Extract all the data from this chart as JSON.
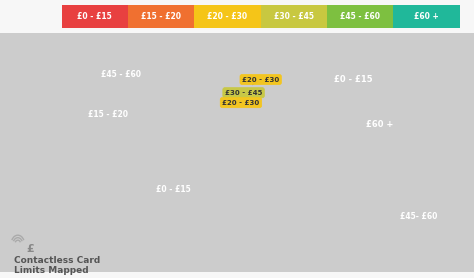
{
  "background_color": "#f7f7f7",
  "legend_items": [
    {
      "label": "£0 - £15",
      "color": "#e84040"
    },
    {
      "label": "£15 - £20",
      "color": "#f07030"
    },
    {
      "label": "£20 - £30",
      "color": "#f5c518"
    },
    {
      "label": "£30 - £45",
      "color": "#c8c840"
    },
    {
      "label": "£45 - £60",
      "color": "#7dc040"
    },
    {
      "label": "£60 +",
      "color": "#20b89a"
    }
  ],
  "color_map": {
    "RUS": "#e84040",
    "CHN": "#e84040",
    "BRA": "#e84040",
    "IND": "#e84040",
    "TUR": "#e84040",
    "IRN": "#e84040",
    "SAU": "#e84040",
    "EGY": "#e84040",
    "PAK": "#e84040",
    "NGA": "#e84040",
    "ZAF": "#e84040",
    "ARG": "#e84040",
    "MEX": "#e84040",
    "IDN": "#e84040",
    "BGD": "#e84040",
    "DZA": "#e84040",
    "LBY": "#e84040",
    "SDN": "#e84040",
    "ETH": "#e84040",
    "COD": "#e84040",
    "TZA": "#e84040",
    "KEN": "#e84040",
    "MOZ": "#e84040",
    "AGO": "#e84040",
    "VEN": "#e84040",
    "COL": "#e84040",
    "PER": "#e84040",
    "CHL": "#e84040",
    "BOL": "#e84040",
    "PRY": "#e84040",
    "URY": "#e84040",
    "ECU": "#e84040",
    "GUY": "#e84040",
    "MMR": "#e84040",
    "VNM": "#e84040",
    "PHL": "#e84040",
    "KAZ": "#e84040",
    "UZB": "#e84040",
    "AFG": "#e84040",
    "IRQ": "#e84040",
    "SYR": "#e84040",
    "YEM": "#e84040",
    "OMN": "#e84040",
    "ARE": "#e84040",
    "QAT": "#e84040",
    "KWT": "#e84040",
    "MAR": "#e84040",
    "TUN": "#e84040",
    "SOM": "#e84040",
    "CMR": "#e84040",
    "ZMB": "#e84040",
    "ZWE": "#e84040",
    "MWI": "#e84040",
    "MDG": "#e84040",
    "USA": "#f07030",
    "DEU": "#f5c518",
    "FRA": "#f5c518",
    "ITA": "#f5c518",
    "ESP": "#f5c518",
    "POL": "#f5c518",
    "NLD": "#f5c518",
    "BEL": "#f5c518",
    "CHE": "#f5c518",
    "AUT": "#f5c518",
    "SWE": "#f5c518",
    "DNK": "#f5c518",
    "NOR": "#f5c518",
    "FIN": "#f5c518",
    "PRT": "#f5c518",
    "GRC": "#f5c518",
    "CZE": "#f5c518",
    "HUN": "#f5c518",
    "ROU": "#f5c518",
    "BGR": "#f5c518",
    "SRB": "#f5c518",
    "HRV": "#f5c518",
    "UKR": "#f5c518",
    "BLR": "#f5c518",
    "SVK": "#f5c518",
    "LTU": "#f5c518",
    "LVA": "#f5c518",
    "EST": "#f5c518",
    "MDA": "#f5c518",
    "SVN": "#f5c518",
    "MKD": "#f5c518",
    "ALB": "#f5c518",
    "BIH": "#f5c518",
    "MNE": "#f5c518",
    "GBR": "#c8c840",
    "IRL": "#c8c840",
    "CAN": "#7dc040",
    "AUS": "#7dc040",
    "JPN": "#20b89a",
    "KOR": "#20b89a",
    "NZL": "#20b89a",
    "MYS": "#20b89a",
    "THA": "#20b89a",
    "SGP": "#20b89a",
    "TWN": "#20b89a"
  },
  "region_labels": [
    {
      "text": "£0 - £15",
      "lon": 88,
      "lat": 57,
      "fcolor": "white",
      "fs": 6.0
    },
    {
      "text": "£15 - £20",
      "lon": -98,
      "lat": 36,
      "fcolor": "white",
      "fs": 5.5
    },
    {
      "text": "£45 - £60",
      "lon": -88,
      "lat": 60,
      "fcolor": "white",
      "fs": 5.5
    },
    {
      "text": "£60 +",
      "lon": 108,
      "lat": 30,
      "fcolor": "white",
      "fs": 6.0
    },
    {
      "text": "£45- £60",
      "lon": 138,
      "lat": -26,
      "fcolor": "white",
      "fs": 5.5
    },
    {
      "text": "£0 - £15",
      "lon": -48,
      "lat": -10,
      "fcolor": "white",
      "fs": 5.5
    }
  ],
  "callout_labels": [
    {
      "text": "£20 - £30",
      "lon": 18,
      "lat": 57,
      "color": "#f5c518",
      "arrow_to_lon": 10,
      "arrow_to_lat": 53
    },
    {
      "text": "£30 - £45",
      "lon": 5,
      "lat": 49,
      "color": "#c8c840",
      "arrow_to_lon": null,
      "arrow_to_lat": null
    },
    {
      "text": "£20 - £30",
      "lon": 3,
      "lat": 43,
      "color": "#f5c518",
      "arrow_to_lon": null,
      "arrow_to_lat": null
    }
  ],
  "title_line1": "Contactless Card",
  "title_line2": "Limits Mapped",
  "title_color": "#555555",
  "land_default_color": "#cccccc",
  "map_xlim": [
    -180,
    180
  ],
  "map_ylim": [
    -60,
    85
  ]
}
